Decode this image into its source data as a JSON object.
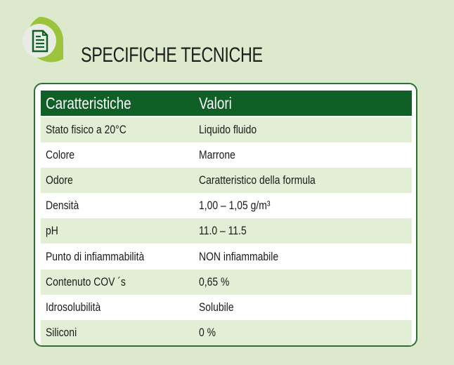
{
  "title": "SPECIFICHE TECNICHE",
  "icon": "document-icon",
  "colors": {
    "header": "#0f5f26",
    "accent": "#9cc33c",
    "row_alt": "#e3eed6",
    "background": "#dde9cc"
  },
  "table": {
    "headers": [
      "Caratteristiche",
      "Valori"
    ],
    "rows": [
      [
        "Stato fisico a 20°C",
        "Liquido fluido"
      ],
      [
        "Colore",
        "Marrone"
      ],
      [
        "Odore",
        "Caratteristico della formula"
      ],
      [
        "Densità",
        "1,00 – 1,05 g/m³"
      ],
      [
        "pH",
        "11.0 – 11.5"
      ],
      [
        "Punto di infiammabilità",
        "NON infiammabile"
      ],
      [
        "Contenuto COV ´s",
        "0,65 %"
      ],
      [
        "Idrosolubilità",
        "Solubile"
      ],
      [
        "Siliconi",
        "0 %"
      ]
    ]
  }
}
